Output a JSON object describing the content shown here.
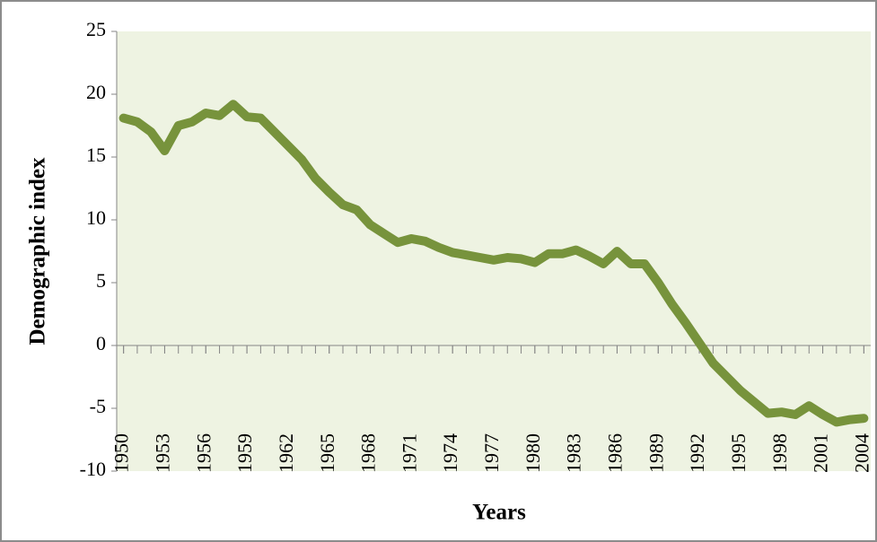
{
  "chart_data": {
    "type": "line",
    "x_label": "Years",
    "y_label": "Demographic index",
    "x": [
      1950,
      1951,
      1952,
      1953,
      1954,
      1955,
      1956,
      1957,
      1958,
      1959,
      1960,
      1961,
      1962,
      1963,
      1964,
      1965,
      1966,
      1967,
      1968,
      1969,
      1970,
      1971,
      1972,
      1973,
      1974,
      1975,
      1976,
      1977,
      1978,
      1979,
      1980,
      1981,
      1982,
      1983,
      1984,
      1985,
      1986,
      1987,
      1988,
      1989,
      1990,
      1991,
      1992,
      1993,
      1994,
      1995,
      1996,
      1997,
      1998,
      1999,
      2000,
      2001,
      2002,
      2003,
      2004
    ],
    "series": [
      {
        "color": "#77933c",
        "values": [
          18.1,
          17.8,
          17.0,
          15.5,
          17.5,
          17.8,
          18.5,
          18.3,
          19.2,
          18.2,
          18.1,
          17.0,
          15.9,
          14.8,
          13.3,
          12.2,
          11.2,
          10.8,
          9.6,
          8.9,
          8.2,
          8.5,
          8.3,
          7.8,
          7.4,
          7.2,
          7.0,
          6.8,
          7.0,
          6.9,
          6.6,
          7.3,
          7.3,
          7.6,
          7.1,
          6.5,
          7.5,
          6.5,
          6.5,
          5.0,
          3.3,
          1.8,
          0.2,
          -1.4,
          -2.5,
          -3.6,
          -4.5,
          -5.4,
          -5.3,
          -5.5,
          -4.8,
          -5.5,
          -6.1,
          -5.9,
          -5.8
        ]
      }
    ],
    "xlim": [
      1949.5,
      2004.5
    ],
    "xticks": [
      1950,
      1953,
      1956,
      1959,
      1962,
      1965,
      1968,
      1971,
      1974,
      1977,
      1980,
      1983,
      1986,
      1989,
      1992,
      1995,
      1998,
      2001,
      2004
    ],
    "ylim": [
      -10,
      25
    ],
    "yticks": [
      -10,
      -5,
      0,
      5,
      10,
      15,
      20,
      25
    ],
    "plot_background": "#eef3e2"
  }
}
